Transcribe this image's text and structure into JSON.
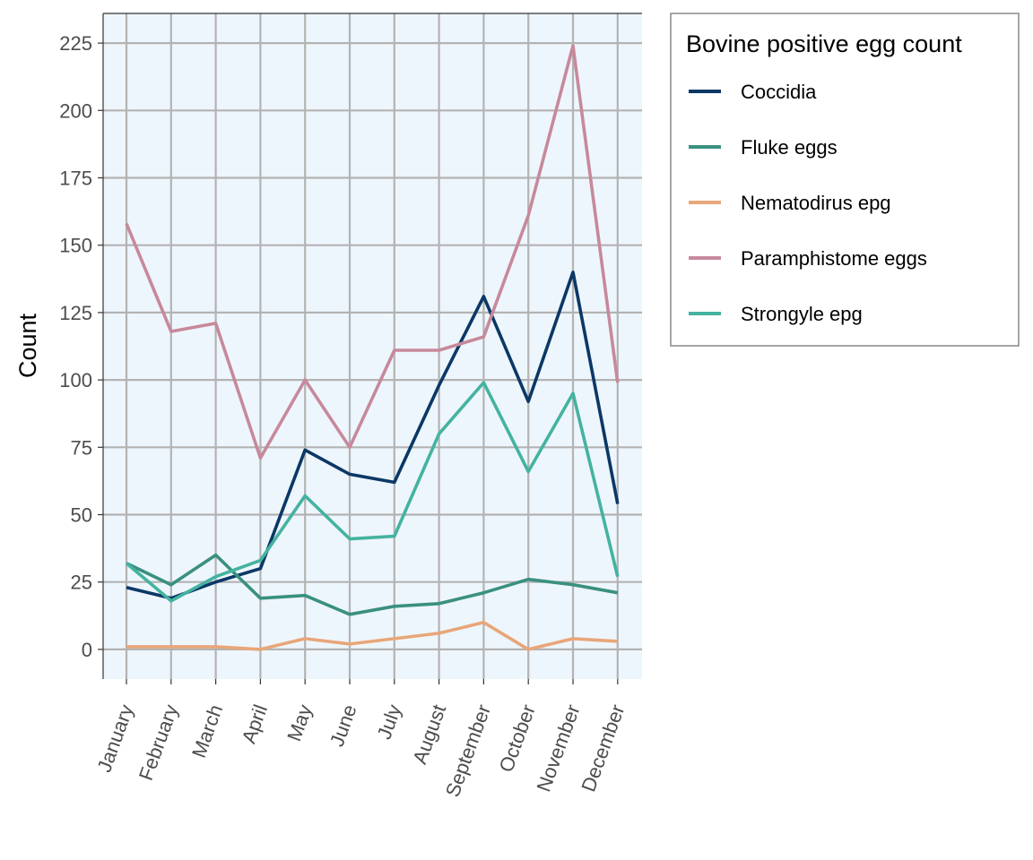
{
  "chart_data": {
    "type": "line",
    "title": "",
    "xlabel": "",
    "ylabel": "Count",
    "ylim": [
      -11,
      236
    ],
    "yticks": [
      0,
      25,
      50,
      75,
      100,
      125,
      150,
      175,
      200,
      225
    ],
    "ytick_labels": [
      "0",
      "25",
      "50",
      "75",
      "100",
      "125",
      "150",
      "175",
      "200",
      "225"
    ],
    "grid": true,
    "legend_position": "right",
    "legend_title": "Bovine positive egg count",
    "panel_background": "#eef6fd",
    "grid_color": "#b3b3b3",
    "categories": [
      "January",
      "February",
      "March",
      "April",
      "May",
      "June",
      "July",
      "August",
      "September",
      "October",
      "November",
      "December"
    ],
    "series": [
      {
        "name": "Coccidia",
        "color": "#0b3866",
        "values": [
          23,
          19,
          25,
          30,
          74,
          65,
          62,
          98,
          131,
          92,
          140,
          54
        ]
      },
      {
        "name": "Fluke eggs",
        "color": "#3a9080",
        "values": [
          32,
          24,
          35,
          19,
          20,
          13,
          16,
          17,
          21,
          26,
          24,
          21
        ]
      },
      {
        "name": "Nematodirus epg",
        "color": "#e8a679",
        "values": [
          1,
          1,
          1,
          0,
          4,
          2,
          4,
          6,
          10,
          0,
          4,
          3
        ]
      },
      {
        "name": "Paramphistome eggs",
        "color": "#c7899b",
        "values": [
          158,
          118,
          121,
          71,
          100,
          75,
          111,
          111,
          116,
          161,
          224,
          99
        ]
      },
      {
        "name": "Strongyle epg",
        "color": "#44b3a0",
        "values": [
          32,
          18,
          27,
          33,
          57,
          41,
          42,
          80,
          99,
          66,
          95,
          27
        ]
      }
    ]
  }
}
